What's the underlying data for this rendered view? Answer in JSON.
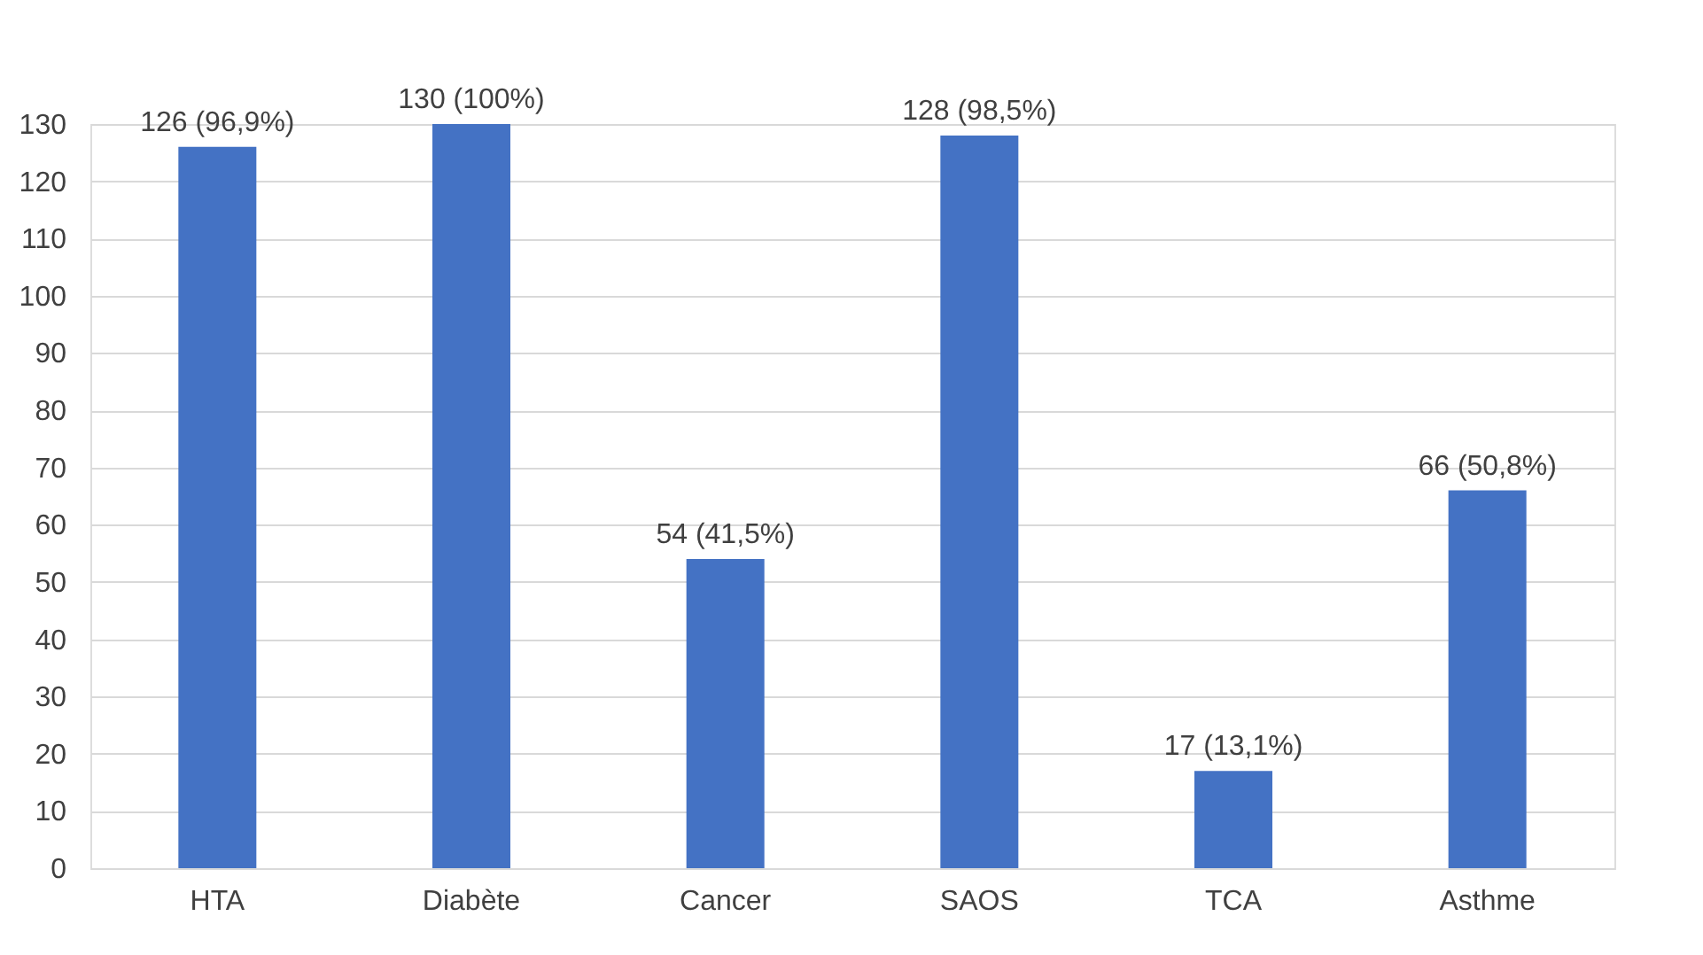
{
  "chart_data": {
    "type": "bar",
    "categories": [
      "HTA",
      "Diabète",
      "Cancer",
      "SAOS",
      "TCA",
      "Asthme"
    ],
    "values": [
      126,
      130,
      54,
      128,
      17,
      66
    ],
    "value_labels": [
      "126 (96,9%)",
      "130 (100%)",
      "54 (41,5%)",
      "128 (98,5%)",
      "17 (13,1%)",
      "66 (50,8%)"
    ],
    "color": "#4472c4",
    "ylim": [
      0,
      130
    ],
    "yticks": [
      0,
      10,
      20,
      30,
      40,
      50,
      60,
      70,
      80,
      90,
      100,
      110,
      120,
      130
    ],
    "grid": "y"
  }
}
